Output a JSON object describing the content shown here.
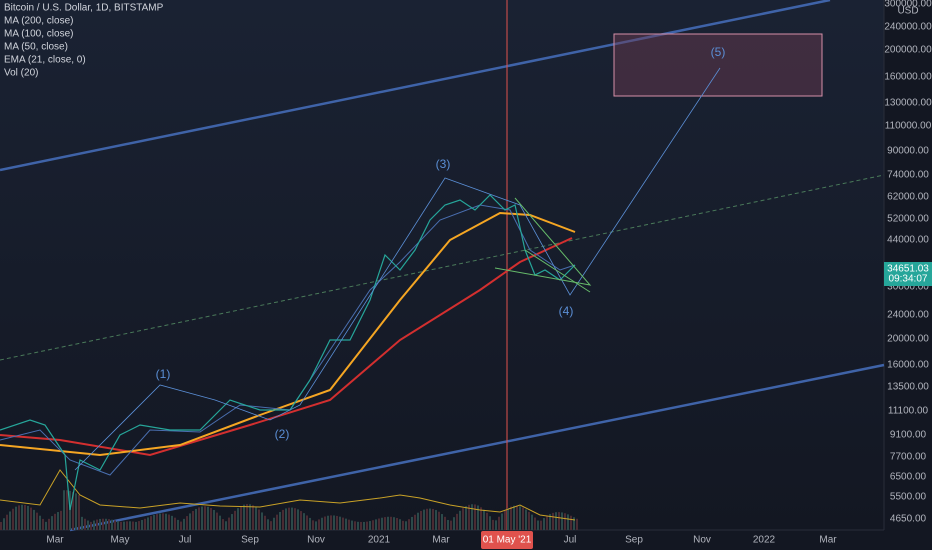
{
  "header": {
    "title": "Bitcoin / U.S. Dollar, 1D, BITSTAMP",
    "indicators": [
      "MA (200, close)",
      "MA (100, close)",
      "MA (50, close)",
      "EMA (21, close, 0)",
      "Vol (20)"
    ]
  },
  "price_axis": {
    "currency": "USD",
    "labels": [
      "300000.00",
      "240000.00",
      "200000.00",
      "160000.00",
      "130000.00",
      "110000.00",
      "90000.00",
      "74000.00",
      "62000.00",
      "52000.00",
      "44000.00",
      "30000.00",
      "24000.00",
      "20000.00",
      "16000.00",
      "13500.00",
      "11100.00",
      "9100.00",
      "7700.00",
      "6500.00",
      "5500.00",
      "4650.00"
    ]
  },
  "current_price": {
    "value": "34651.03",
    "countdown": "09:34:07"
  },
  "time_axis": {
    "labels": [
      "Mar",
      "May",
      "Jul",
      "Sep",
      "Nov",
      "2021",
      "Mar",
      "Jul",
      "Sep",
      "Nov",
      "2022",
      "Mar"
    ],
    "cursor": "01 May '21"
  },
  "waves": [
    "(1)",
    "(2)",
    "(3)",
    "(4)",
    "(5)"
  ]
}
